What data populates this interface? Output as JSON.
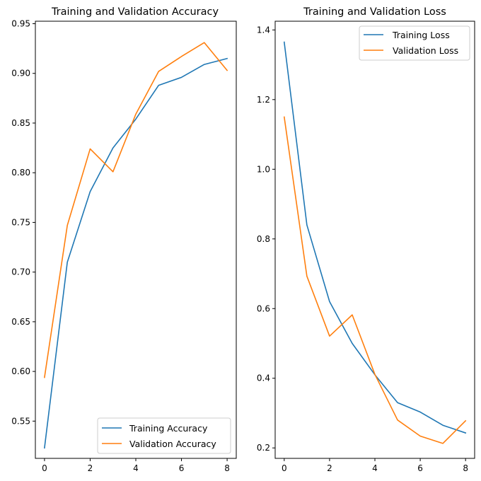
{
  "colors": {
    "training": "#1f77b4",
    "validation": "#ff7f0e"
  },
  "chart_data": [
    {
      "type": "line",
      "title": "Training and Validation Accuracy",
      "xlabel": "",
      "ylabel": "",
      "xlim": [
        -0.4,
        8.4
      ],
      "ylim": [
        0.5125,
        0.9525
      ],
      "xticks": [
        0,
        2,
        4,
        6,
        8
      ],
      "yticks": [
        0.55,
        0.6,
        0.65,
        0.7,
        0.75,
        0.8,
        0.85,
        0.9,
        0.95
      ],
      "ytick_labels": [
        "0.55",
        "0.60",
        "0.65",
        "0.70",
        "0.75",
        "0.80",
        "0.85",
        "0.90",
        "0.95"
      ],
      "legend_position": "lower-right",
      "grid": false,
      "x": [
        0,
        1,
        2,
        3,
        4,
        5,
        6,
        7,
        8
      ],
      "series": [
        {
          "name": "Training Accuracy",
          "color_key": "training",
          "values": [
            0.523,
            0.71,
            0.781,
            0.825,
            0.854,
            0.888,
            0.896,
            0.909,
            0.915
          ]
        },
        {
          "name": "Validation Accuracy",
          "color_key": "validation",
          "values": [
            0.594,
            0.747,
            0.824,
            0.801,
            0.859,
            0.902,
            0.917,
            0.931,
            0.903
          ]
        }
      ]
    },
    {
      "type": "line",
      "title": "Training and Validation Loss",
      "xlabel": "",
      "ylabel": "",
      "xlim": [
        -0.4,
        8.4
      ],
      "ylim": [
        0.17,
        1.425
      ],
      "xticks": [
        0,
        2,
        4,
        6,
        8
      ],
      "yticks": [
        0.2,
        0.4,
        0.6,
        0.8,
        1.0,
        1.2,
        1.4
      ],
      "ytick_labels": [
        "0.2",
        "0.4",
        "0.6",
        "0.8",
        "1.0",
        "1.2",
        "1.4"
      ],
      "legend_position": "upper-right",
      "grid": false,
      "x": [
        0,
        1,
        2,
        3,
        4,
        5,
        6,
        7,
        8
      ],
      "series": [
        {
          "name": "Training Loss",
          "color_key": "training",
          "values": [
            1.365,
            0.84,
            0.62,
            0.5,
            0.41,
            0.33,
            0.303,
            0.265,
            0.243
          ]
        },
        {
          "name": "Validation Loss",
          "color_key": "validation",
          "values": [
            1.15,
            0.693,
            0.521,
            0.582,
            0.411,
            0.28,
            0.234,
            0.213,
            0.278
          ]
        }
      ]
    }
  ]
}
